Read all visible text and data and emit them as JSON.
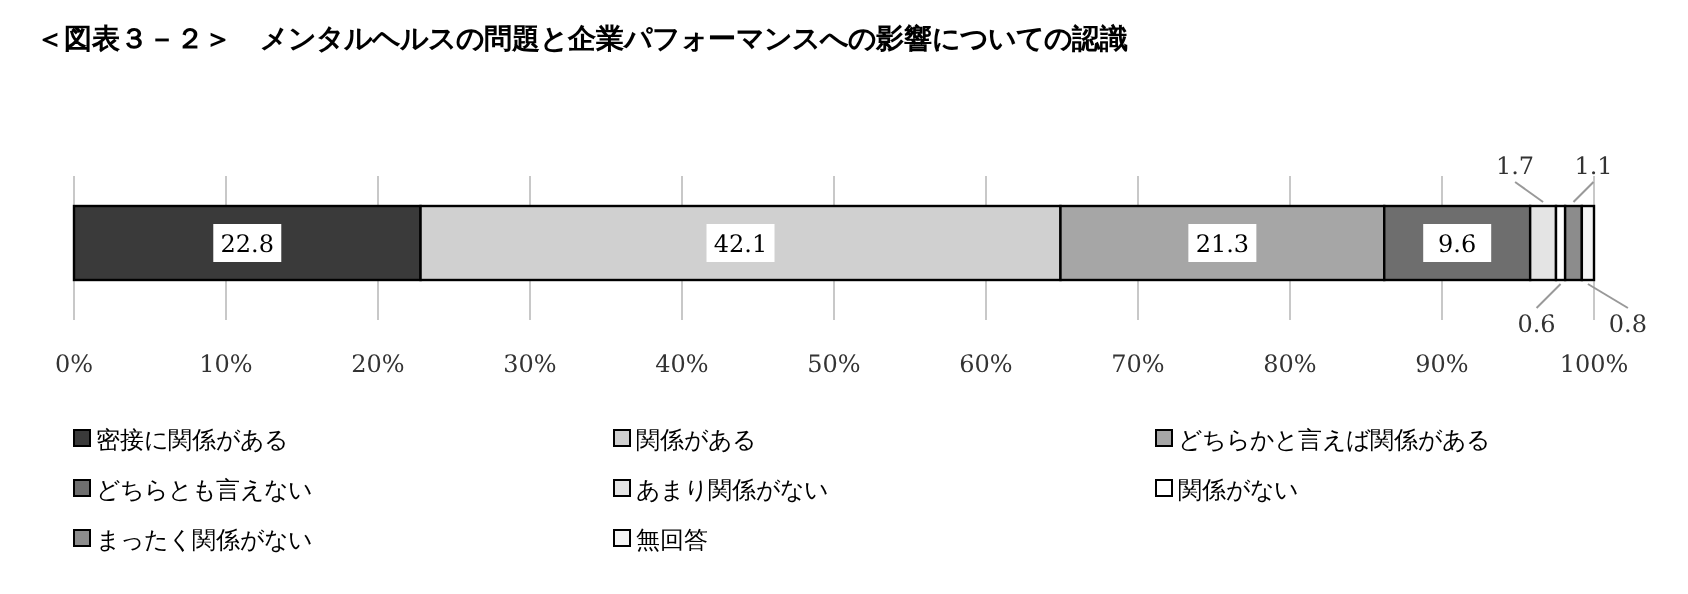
{
  "chart_data": {
    "type": "bar",
    "orientation": "horizontal",
    "stacked": true,
    "title": "＜図表３－２＞　メンタルヘルスの問題と企業パフォーマンスへの影響についての認識",
    "categories": [
      null
    ],
    "series": [
      {
        "name": "密接に関係がある",
        "color": "#3a3a3a",
        "values": [
          22.8
        ]
      },
      {
        "name": "関係がある",
        "color": "#d0d0d0",
        "values": [
          42.1
        ]
      },
      {
        "name": "どちらかと言えば関係がある",
        "color": "#a6a6a6",
        "values": [
          21.3
        ]
      },
      {
        "name": "どちらとも言えない",
        "color": "#6e6e6e",
        "values": [
          9.6
        ]
      },
      {
        "name": "あまり関係がない",
        "color": "#e4e4e4",
        "values": [
          1.7
        ]
      },
      {
        "name": "関係がない",
        "color": "#ffffff",
        "values": [
          0.6
        ]
      },
      {
        "name": "まったく関係がない",
        "color": "#8c8c8c",
        "values": [
          1.1
        ]
      },
      {
        "name": "無回答",
        "color": "#f4f4f4",
        "values": [
          0.8
        ]
      }
    ],
    "xlim": [
      0,
      100
    ],
    "xticks": [
      {
        "value": 0,
        "label": "0%"
      },
      {
        "value": 10,
        "label": "10%"
      },
      {
        "value": 20,
        "label": "20%"
      },
      {
        "value": 30,
        "label": "30%"
      },
      {
        "value": 40,
        "label": "40%"
      },
      {
        "value": 50,
        "label": "50%"
      },
      {
        "value": 60,
        "label": "60%"
      },
      {
        "value": 70,
        "label": "70%"
      },
      {
        "value": 80,
        "label": "80%"
      },
      {
        "value": 90,
        "label": "90%"
      },
      {
        "value": 100,
        "label": "100%"
      }
    ],
    "grid": "x",
    "legend": "bottom",
    "data_labels": true
  }
}
